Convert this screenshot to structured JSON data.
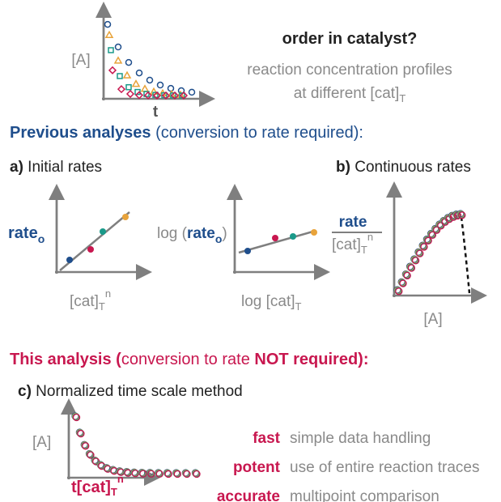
{
  "header": {
    "y_label": "[A]",
    "x_label": "t",
    "question": "order in catalyst?",
    "line1": "reaction concentration profiles",
    "line2": "at different [cat]",
    "line2_sub": "T"
  },
  "previous": {
    "title": "Previous analyses",
    "note": " (conversion to rate required):"
  },
  "panel_a": {
    "letter": "a)",
    "title": " Initial rates",
    "plot1": {
      "y_label": "rate",
      "y_sub": "o",
      "x_label": "[cat]",
      "x_sub": "T",
      "x_sup": "n"
    },
    "plot2": {
      "y_prefix": "log (",
      "y_label": "rate",
      "y_sub": "o",
      "y_suffix": ")",
      "x_label": "log [cat]",
      "x_sub": "T"
    }
  },
  "panel_b": {
    "letter": "b)",
    "title": " Continuous rates",
    "y_num": "rate",
    "y_den": "[cat]",
    "y_den_sub": "T",
    "y_den_sup": "n",
    "x_label": "[A]"
  },
  "this": {
    "title": "This analysis (",
    "note": "conversion to rate ",
    "emph": "NOT",
    "end": " required):"
  },
  "panel_c": {
    "letter": "c)",
    "title": " Normalized time scale method",
    "y_label": "[A]",
    "x_label": "t[cat]",
    "x_sub": "T",
    "x_sup": "n"
  },
  "features": [
    {
      "word": "fast",
      "text": "simple data handling"
    },
    {
      "word": "potent",
      "text": "use of entire reaction traces"
    },
    {
      "word": "accurate",
      "text": "multipoint comparison"
    }
  ]
}
